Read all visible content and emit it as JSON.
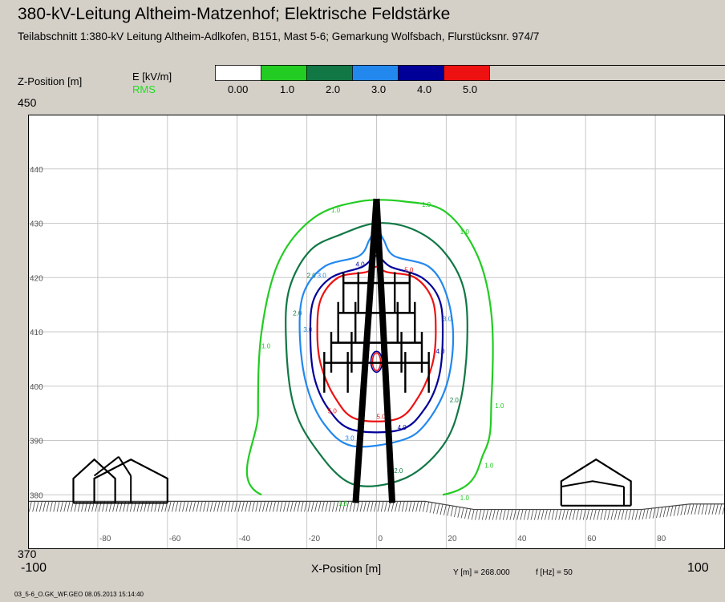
{
  "title": "380-kV-Leitung Altheim-Matzenhof; Elektrische Feldstärke",
  "subtitle": "Teilabschnitt 1:380-kV Leitung Altheim-Adlkofen, B151, Mast 5-6; Gemarkung Wolfsbach, Flurstücksnr. 974/7",
  "colors": {
    "background": "#d4d0c8",
    "plot": "#ffffff",
    "grid": "#c8c8c8",
    "ground_hatch": "#444444",
    "structure": "#000000"
  },
  "chart_data": {
    "type": "contour",
    "ylabel": "Z-Position [m]",
    "xlabel": "X-Position [m]",
    "xlim": [
      -100,
      100
    ],
    "ylim": [
      370,
      450
    ],
    "xlim_labels": [
      "-100",
      "100"
    ],
    "ylim_labels": [
      "450",
      "370"
    ],
    "x_ticks": [
      "-80",
      "-60",
      "-40",
      "-20",
      "0",
      "20",
      "40",
      "60",
      "80"
    ],
    "y_ticks": [
      "380",
      "390",
      "400",
      "410",
      "420",
      "430",
      "440"
    ],
    "grid": true,
    "legend": {
      "title": "E [kV/m]",
      "subtitle": "RMS",
      "items": [
        {
          "label": "0.00",
          "color": "#ffffff"
        },
        {
          "label": "1.0",
          "color": "#22cc22"
        },
        {
          "label": "2.0",
          "color": "#117744"
        },
        {
          "label": "3.0",
          "color": "#2288ee"
        },
        {
          "label": "4.0",
          "color": "#000099"
        },
        {
          "label": "5.0",
          "color": "#ee1111"
        }
      ]
    },
    "contours": [
      {
        "level": "1.0",
        "color": "#22cc22",
        "points": [
          [
            -33,
            380
          ],
          [
            -34,
            395
          ],
          [
            -33,
            410
          ],
          [
            -28,
            423
          ],
          [
            -18,
            431
          ],
          [
            -5,
            434
          ],
          [
            8,
            434
          ],
          [
            20,
            432
          ],
          [
            29,
            424
          ],
          [
            33,
            413
          ],
          [
            33,
            398
          ],
          [
            31,
            388
          ],
          [
            19,
            380
          ]
        ],
        "labels": [
          [
            -13,
            432
          ],
          [
            13,
            433
          ],
          [
            24,
            428
          ],
          [
            -33,
            407
          ],
          [
            34,
            396
          ],
          [
            31,
            385
          ],
          [
            24,
            379
          ],
          [
            -11,
            378
          ]
        ]
      },
      {
        "level": "2.0",
        "color": "#117744",
        "points": [
          [
            -7,
            382
          ],
          [
            -18,
            389
          ],
          [
            -24,
            397
          ],
          [
            -26,
            409
          ],
          [
            -25,
            418
          ],
          [
            -19,
            425
          ],
          [
            -10,
            428
          ],
          [
            0,
            430
          ],
          [
            10,
            429
          ],
          [
            19,
            425
          ],
          [
            25,
            418
          ],
          [
            26,
            408
          ],
          [
            24,
            397
          ],
          [
            19,
            389
          ],
          [
            8,
            383
          ]
        ],
        "labels": [
          [
            -20,
            420
          ],
          [
            -24,
            413
          ],
          [
            21,
            397
          ],
          [
            5,
            384
          ]
        ]
      },
      {
        "level": "3.0",
        "color": "#2288ee",
        "points": [
          [
            -7,
            389
          ],
          [
            -15,
            393
          ],
          [
            -20,
            400
          ],
          [
            -22,
            409
          ],
          [
            -21,
            417
          ],
          [
            -15,
            422
          ],
          [
            -5,
            424
          ],
          [
            -2,
            427
          ],
          [
            0,
            429
          ],
          [
            2,
            427
          ],
          [
            5,
            424
          ],
          [
            15,
            422
          ],
          [
            20,
            417
          ],
          [
            22,
            409
          ],
          [
            20,
            400
          ],
          [
            14,
            393
          ],
          [
            7,
            390
          ]
        ],
        "labels": [
          [
            -17,
            420
          ],
          [
            -21,
            410
          ],
          [
            -9,
            390
          ],
          [
            19,
            412
          ]
        ]
      },
      {
        "level": "4.0",
        "color": "#000099",
        "points": [
          [
            -7,
            392
          ],
          [
            -14,
            396
          ],
          [
            -18,
            402
          ],
          [
            -19,
            410
          ],
          [
            -18,
            416
          ],
          [
            -13,
            420
          ],
          [
            -4,
            422
          ],
          [
            0,
            424
          ],
          [
            4,
            422
          ],
          [
            13,
            420
          ],
          [
            18,
            416
          ],
          [
            19,
            410
          ],
          [
            18,
            402
          ],
          [
            14,
            396
          ],
          [
            7,
            392
          ]
        ],
        "labels": [
          [
            -6,
            422
          ],
          [
            17,
            406
          ],
          [
            6,
            392
          ]
        ]
      },
      {
        "level": "5.0",
        "color": "#ee1111",
        "points": [
          [
            -6,
            394
          ],
          [
            -12,
            398
          ],
          [
            -16,
            404
          ],
          [
            -17,
            410
          ],
          [
            -16,
            416
          ],
          [
            -11,
            420
          ],
          [
            -3,
            421
          ],
          [
            0,
            422
          ],
          [
            3,
            421
          ],
          [
            11,
            420
          ],
          [
            16,
            416
          ],
          [
            17,
            410
          ],
          [
            16,
            404
          ],
          [
            12,
            398
          ],
          [
            6,
            394
          ]
        ],
        "labels": [
          [
            0,
            394
          ],
          [
            8,
            421
          ],
          [
            -14,
            395
          ]
        ]
      }
    ]
  },
  "footer": {
    "y_info": "Y [m] = 268.000",
    "f_info": "f [Hz] = 50",
    "file_info": "03_5-6_O.GK_WF.GEO  08.05.2013  15:14:40"
  }
}
